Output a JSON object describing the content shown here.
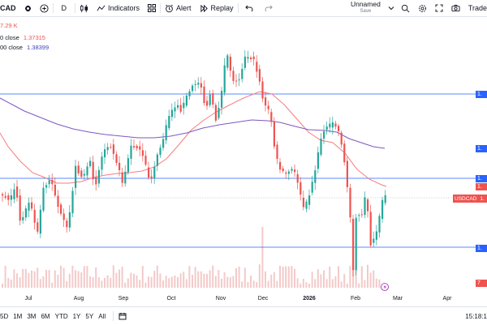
{
  "toolbar": {
    "symbol": "CAD",
    "interval": "D",
    "indicators_label": "Indicators",
    "alert_label": "Alert",
    "replay_label": "Replay",
    "layout_name": "Unnamed",
    "layout_status": "Save",
    "trade_label": "Trade"
  },
  "legend": {
    "volume": "7.29 K",
    "ma1_label": "0 close",
    "ma1_value": "1.37315",
    "ma2_label": "00 close",
    "ma2_value": "1.38399"
  },
  "chart": {
    "symbol_tag": "USDCAD",
    "x_labels": [
      "Jul",
      "Aug",
      "Sep",
      "Oct",
      "Nov",
      "Dec",
      "2026",
      "Feb",
      "Mar",
      "Apr"
    ],
    "price_tag_text": "1.",
    "volume_tag": "7",
    "colors": {
      "up": "#26a69a",
      "down": "#ef5350",
      "ma_short": "#f77c80",
      "ma_long": "#7e57c2",
      "hline": "#2962ff"
    }
  },
  "bottombar": {
    "ranges": [
      "5D",
      "1M",
      "3M",
      "6M",
      "YTD",
      "1Y",
      "5Y",
      "All"
    ],
    "time": "15:18:1"
  }
}
